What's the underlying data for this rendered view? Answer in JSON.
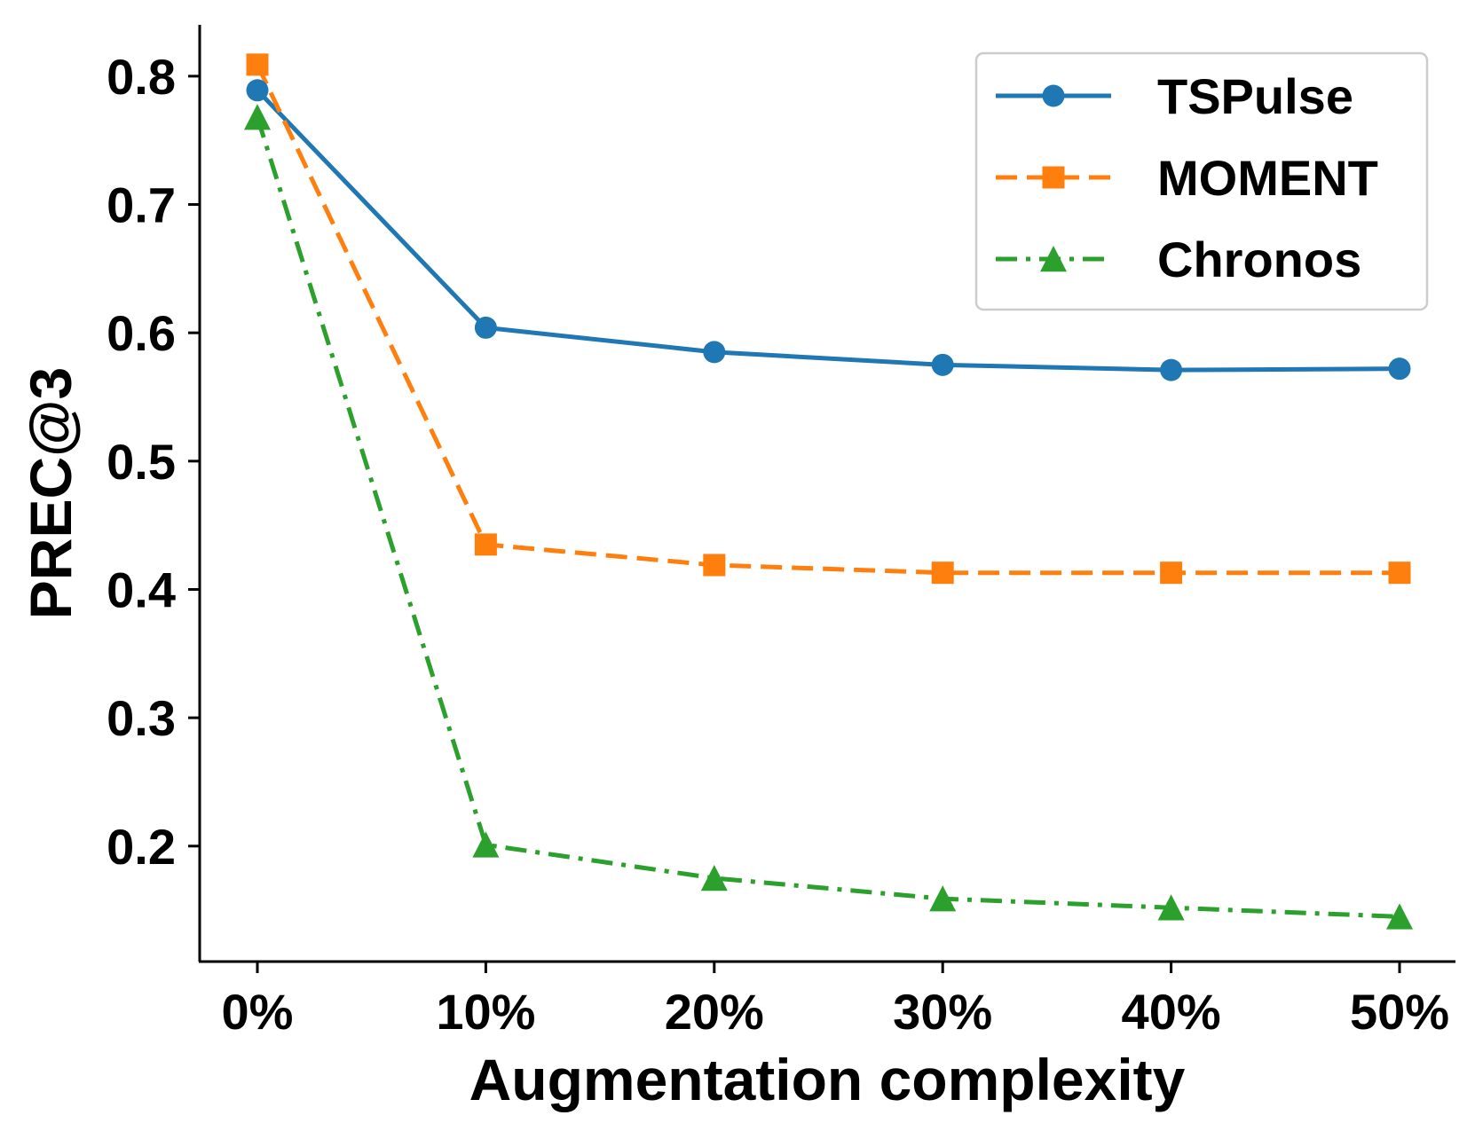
{
  "chart_data": {
    "type": "line",
    "title": "",
    "xlabel": "Augmentation complexity",
    "ylabel": "PREC@3",
    "categories": [
      "0%",
      "10%",
      "20%",
      "30%",
      "40%",
      "50%"
    ],
    "yticks": [
      "0.2",
      "0.3",
      "0.4",
      "0.5",
      "0.6",
      "0.7",
      "0.8"
    ],
    "yrange": [
      0.11,
      0.84
    ],
    "legend_position": "top-right",
    "grid": false,
    "series": [
      {
        "name": "TSPulse",
        "values": [
          0.789,
          0.604,
          0.585,
          0.575,
          0.571,
          0.572
        ],
        "color": "#1f77b4",
        "marker": "circle",
        "linestyle": "solid"
      },
      {
        "name": "MOMENT",
        "values": [
          0.809,
          0.435,
          0.419,
          0.413,
          0.413,
          0.413
        ],
        "color": "#ff7f0e",
        "marker": "square",
        "linestyle": "dashed"
      },
      {
        "name": "Chronos",
        "values": [
          0.768,
          0.201,
          0.175,
          0.159,
          0.152,
          0.145
        ],
        "color": "#2ca02c",
        "marker": "triangle",
        "linestyle": "dashdot"
      }
    ]
  }
}
